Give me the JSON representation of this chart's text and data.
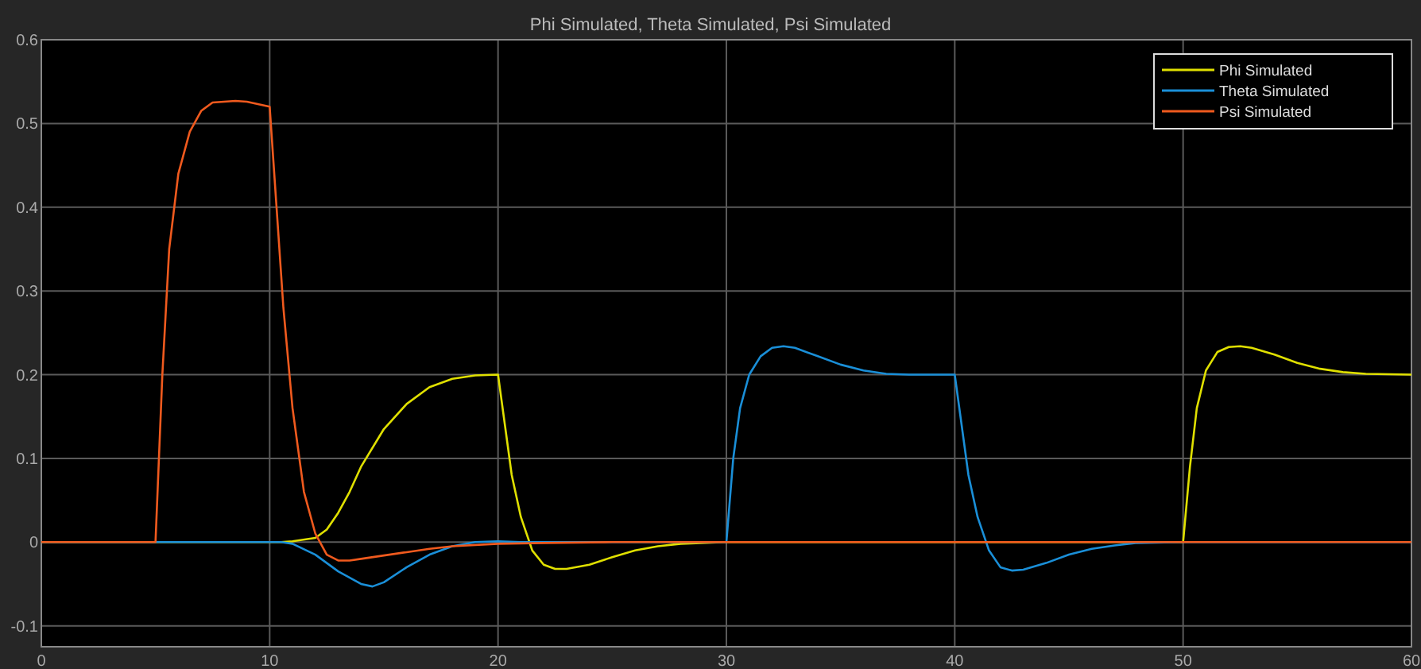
{
  "chart_data": {
    "type": "line",
    "title": "Phi Simulated, Theta Simulated, Psi Simulated",
    "xlim": [
      0,
      60
    ],
    "xticks": [
      0,
      10,
      20,
      30,
      40,
      50,
      60
    ],
    "ylim": [
      -0.125,
      0.6
    ],
    "yticks": [
      -0.1,
      0,
      0.1,
      0.2,
      0.3,
      0.4,
      0.5,
      0.6
    ],
    "grid": true,
    "legend": "top right",
    "line_style": "solid",
    "series": [
      {
        "name": "Phi Simulated",
        "color": "#e0e000",
        "x": [
          0,
          10.5,
          11,
          12,
          12.5,
          13,
          13.5,
          14,
          15,
          16,
          17,
          18,
          19,
          20,
          20.3,
          20.6,
          21,
          21.5,
          22,
          22.5,
          23,
          24,
          25,
          26,
          27,
          28,
          30,
          50,
          50.3,
          50.6,
          51,
          51.5,
          52,
          52.5,
          53,
          54,
          55,
          56,
          57,
          58,
          60
        ],
        "values": [
          0,
          0,
          0.001,
          0.005,
          0.015,
          0.035,
          0.06,
          0.09,
          0.135,
          0.165,
          0.185,
          0.195,
          0.199,
          0.2,
          0.14,
          0.08,
          0.03,
          -0.01,
          -0.027,
          -0.032,
          -0.032,
          -0.027,
          -0.018,
          -0.01,
          -0.005,
          -0.002,
          0,
          0,
          0.09,
          0.16,
          0.205,
          0.227,
          0.233,
          0.234,
          0.232,
          0.224,
          0.214,
          0.207,
          0.203,
          0.201,
          0.2
        ]
      },
      {
        "name": "Theta Simulated",
        "color": "#1a8fd8",
        "x": [
          0,
          10.5,
          11,
          12,
          13,
          14,
          14.5,
          15,
          16,
          17,
          18,
          19,
          20,
          21,
          30,
          30.3,
          30.6,
          31,
          31.5,
          32,
          32.5,
          33,
          34,
          35,
          36,
          37,
          38,
          40,
          40.3,
          40.6,
          41,
          41.5,
          42,
          42.5,
          43,
          44,
          45,
          46,
          47,
          48,
          50,
          60
        ],
        "values": [
          0,
          0,
          -0.002,
          -0.015,
          -0.035,
          -0.05,
          -0.053,
          -0.048,
          -0.03,
          -0.015,
          -0.005,
          0,
          0.001,
          0,
          0,
          0.1,
          0.16,
          0.2,
          0.222,
          0.232,
          0.234,
          0.232,
          0.222,
          0.212,
          0.205,
          0.201,
          0.2,
          0.2,
          0.14,
          0.08,
          0.03,
          -0.01,
          -0.03,
          -0.034,
          -0.033,
          -0.025,
          -0.015,
          -0.008,
          -0.004,
          -0.001,
          0,
          0
        ]
      },
      {
        "name": "Psi Simulated",
        "color": "#f05a1e",
        "x": [
          0,
          5,
          5.3,
          5.6,
          6,
          6.5,
          7,
          7.5,
          8.5,
          9,
          10,
          10.3,
          10.6,
          11,
          11.5,
          12,
          12.5,
          13,
          13.5,
          14,
          15,
          16,
          17,
          18,
          20,
          22,
          25,
          60
        ],
        "values": [
          0,
          0,
          0.2,
          0.35,
          0.44,
          0.49,
          0.515,
          0.525,
          0.527,
          0.526,
          0.52,
          0.4,
          0.28,
          0.16,
          0.06,
          0.01,
          -0.015,
          -0.022,
          -0.022,
          -0.02,
          -0.016,
          -0.012,
          -0.008,
          -0.005,
          -0.002,
          -0.001,
          0,
          0
        ]
      }
    ]
  }
}
